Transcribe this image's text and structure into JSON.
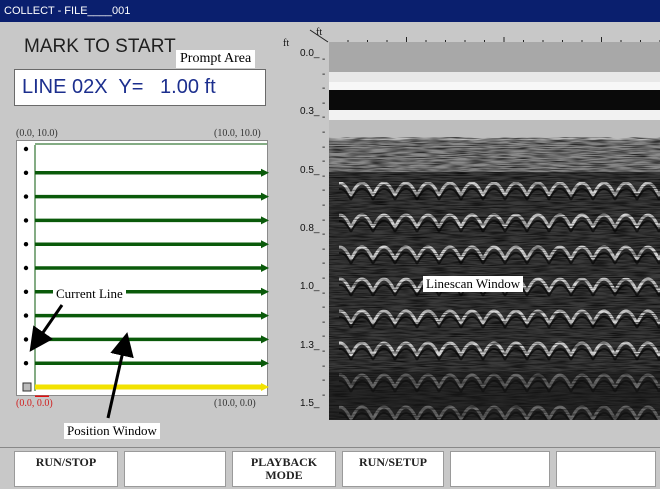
{
  "window": {
    "title": "COLLECT - FILE____001"
  },
  "mode_text": "MARK TO START",
  "prompt": {
    "tag": "Prompt Area",
    "value": "LINE 02X  Y=   1.00 ft"
  },
  "position_window": {
    "top_left": "(0.0, 10.0)",
    "top_right": "(10.0, 10.0)",
    "bottom_left": "(0.0, 0.0)",
    "bottom_right": "(10.0, 0.0)",
    "completed_lines": 10,
    "current_line_index": 10,
    "colors": {
      "completed": "#0a5a0a",
      "current": "#f2e200",
      "pending": "#1a2a9a",
      "start_marker": "#e01010"
    }
  },
  "callouts": {
    "current_line": "Current Line",
    "position_window": "Position Window",
    "linescan_window": "Linescan Window"
  },
  "linescan": {
    "unit_corner_top": "ft",
    "unit_corner_left": "ft",
    "depth_ticks": [
      "0.0",
      "0.3",
      "0.5",
      "0.8",
      "1.0",
      "1.3",
      "1.5"
    ]
  },
  "softkeys": [
    {
      "line1": "RUN/STOP",
      "line2": ""
    },
    {
      "line1": "",
      "line2": ""
    },
    {
      "line1": "PLAYBACK",
      "line2": "MODE"
    },
    {
      "line1": "RUN/SETUP",
      "line2": ""
    },
    {
      "line1": "",
      "line2": ""
    },
    {
      "line1": "",
      "line2": ""
    }
  ]
}
